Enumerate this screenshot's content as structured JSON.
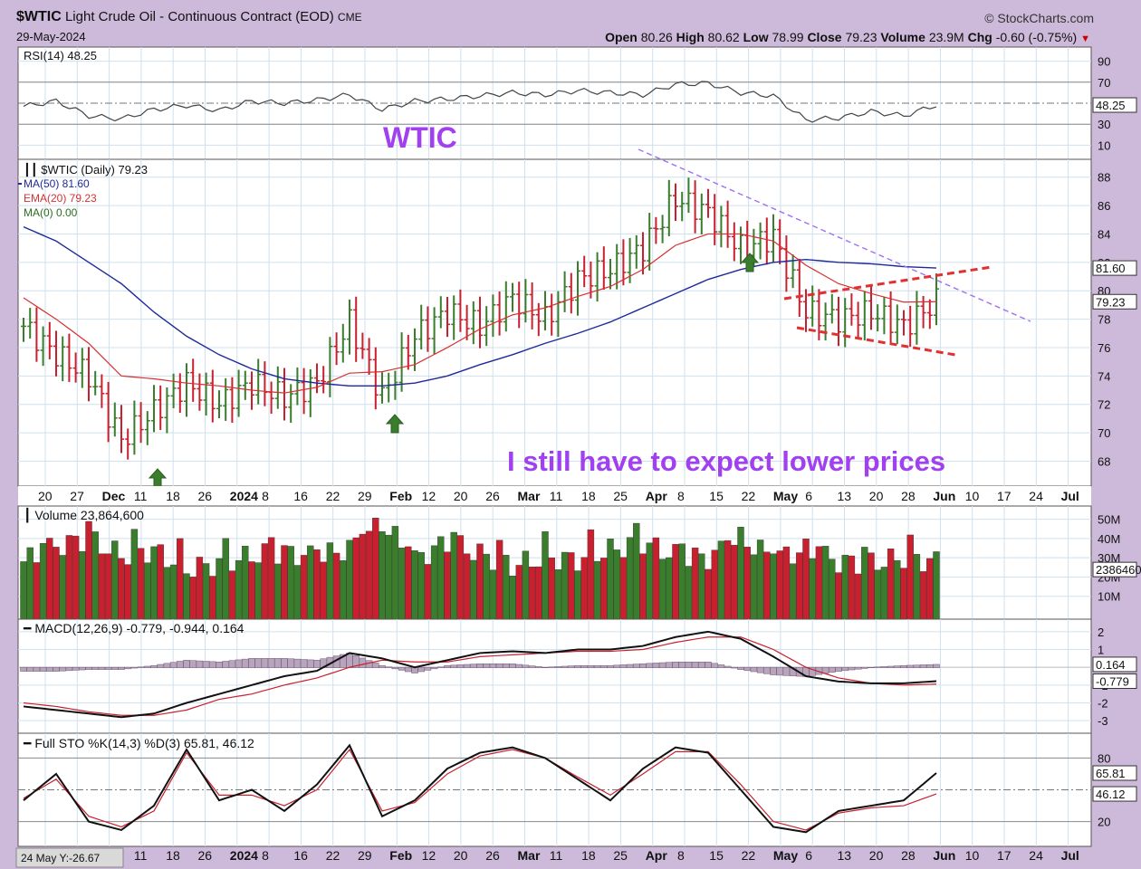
{
  "header": {
    "symbol": "$WTIC",
    "name": "Light Crude Oil - Continuous Contract (EOD)",
    "exchange": "CME",
    "date": "29-May-2024",
    "brand": "© StockCharts.com",
    "open_label": "Open",
    "open": "80.26",
    "high_label": "High",
    "high": "80.62",
    "low_label": "Low",
    "low": "78.99",
    "close_label": "Close",
    "close": "79.23",
    "volume_label": "Volume",
    "volume": "23.9M",
    "chg_label": "Chg",
    "chg": "-0.60 (-0.75%)"
  },
  "annotations": {
    "title_text": "WTIC",
    "comment_text": "I still have to expect lower prices",
    "cursor_readout": "24 May Y:-26.67"
  },
  "colors": {
    "panel_bg": "#ffffff",
    "frame_bg": "#cdb9d9",
    "up_bar": "#3a7d2c",
    "down_bar": "#c8202e",
    "ma50": "#1e2a99",
    "ema20": "#d83030",
    "trendline_purple": "#a070f0",
    "channel_red": "#e03030",
    "annotation_purple": "#a040f0"
  },
  "chart_data": [
    {
      "type": "line",
      "panel": "rsi",
      "legend": "RSI(14) 48.25",
      "ylim": [
        0,
        100
      ],
      "yticks": [
        "90",
        "70",
        "30",
        "10"
      ],
      "last_label": "48.25",
      "levels": [
        70,
        30
      ],
      "x": [
        "2023-11-17",
        "2023-11-24",
        "2023-12-01",
        "2023-12-08",
        "2023-12-15",
        "2023-12-22",
        "2023-12-29",
        "2024-01-05",
        "2024-01-12",
        "2024-01-19",
        "2024-01-26",
        "2024-02-02",
        "2024-02-09",
        "2024-02-16",
        "2024-02-23",
        "2024-03-01",
        "2024-03-08",
        "2024-03-15",
        "2024-03-22",
        "2024-03-29",
        "2024-04-05",
        "2024-04-12",
        "2024-04-19",
        "2024-04-26",
        "2024-05-03",
        "2024-05-10",
        "2024-05-17",
        "2024-05-24",
        "2024-05-29"
      ],
      "series": [
        {
          "name": "RSI(14)",
          "values": [
            47,
            52,
            38,
            35,
            44,
            48,
            43,
            52,
            50,
            53,
            58,
            44,
            52,
            54,
            57,
            60,
            58,
            62,
            60,
            58,
            68,
            69,
            60,
            57,
            34,
            36,
            42,
            38,
            48.25
          ]
        }
      ]
    },
    {
      "type": "ohlc",
      "panel": "price",
      "legend": [
        "$WTIC (Daily) 79.23",
        "MA(50) 81.60",
        "EMA(20) 79.23",
        "MA(0) 0.00"
      ],
      "ylim": [
        66.5,
        89
      ],
      "yticks": [
        "88",
        "86",
        "84",
        "82",
        "80",
        "78",
        "76",
        "74",
        "72",
        "70",
        "68"
      ],
      "last_labels": [
        "81.60",
        "79.23"
      ],
      "x_tick_labels": [
        "20",
        "27",
        "Dec",
        "11",
        "18",
        "26",
        "2024",
        "8",
        "16",
        "22",
        "29",
        "Feb",
        "12",
        "20",
        "26",
        "Mar",
        "11",
        "18",
        "25",
        "Apr",
        "8",
        "15",
        "22",
        "May",
        "6",
        "13",
        "20",
        "28",
        "Jun",
        "10",
        "17",
        "24",
        "Jul"
      ],
      "x": [
        "2023-11-17",
        "2023-11-24",
        "2023-12-01",
        "2023-12-08",
        "2023-12-15",
        "2023-12-22",
        "2023-12-29",
        "2024-01-05",
        "2024-01-12",
        "2024-01-19",
        "2024-01-26",
        "2024-02-02",
        "2024-02-09",
        "2024-02-16",
        "2024-02-23",
        "2024-03-01",
        "2024-03-08",
        "2024-03-15",
        "2024-03-22",
        "2024-03-29",
        "2024-04-05",
        "2024-04-12",
        "2024-04-19",
        "2024-04-26",
        "2024-05-03",
        "2024-05-10",
        "2024-05-17",
        "2024-05-24",
        "2024-05-29"
      ],
      "close": [
        77.5,
        75.5,
        74.0,
        69.5,
        71.5,
        73.5,
        72.0,
        73.5,
        72.5,
        73.5,
        77.8,
        72.5,
        76.8,
        78.5,
        77.5,
        79.5,
        78.0,
        80.8,
        81.5,
        83.0,
        86.5,
        85.5,
        83.0,
        83.8,
        78.5,
        78.0,
        78.5,
        77.5,
        79.23
      ],
      "ma50": [
        84.5,
        83.5,
        82.0,
        80.5,
        78.5,
        76.8,
        75.5,
        74.5,
        73.8,
        73.5,
        73.3,
        73.3,
        73.5,
        74.0,
        74.8,
        75.5,
        76.3,
        77.0,
        77.8,
        78.8,
        79.8,
        80.8,
        81.5,
        82.0,
        82.2,
        82.0,
        81.9,
        81.7,
        81.6
      ],
      "ema20": [
        79.5,
        78.0,
        76.3,
        74.0,
        73.8,
        73.5,
        73.3,
        73.0,
        72.8,
        73.2,
        74.2,
        74.3,
        74.8,
        76.0,
        77.3,
        78.3,
        78.8,
        79.6,
        80.3,
        81.5,
        83.2,
        84.0,
        84.0,
        83.5,
        81.8,
        80.5,
        79.8,
        79.2,
        79.23
      ]
    },
    {
      "type": "bar",
      "panel": "volume",
      "legend": "Volume 23,864,600",
      "yticks": [
        "50M",
        "40M",
        "30M",
        "20M",
        "10M"
      ],
      "last_label": "23864600",
      "ylim": [
        0,
        55
      ],
      "values": [
        28,
        36,
        40,
        31,
        34,
        24,
        27,
        31,
        33,
        30,
        35,
        48,
        29,
        38,
        32,
        26,
        30,
        29,
        34,
        38,
        31,
        30,
        40,
        30,
        34,
        28,
        27,
        30,
        28
      ]
    },
    {
      "type": "line",
      "panel": "macd",
      "legend": "MACD(12,26,9) -0.779, -0.944, 0.164",
      "yticks": [
        "2",
        "1",
        "-1",
        "-2",
        "-3"
      ],
      "last_labels": [
        "0.164",
        "-0.779"
      ],
      "ylim": [
        -3.5,
        2.5
      ],
      "series": [
        {
          "name": "MACD",
          "values": [
            -2.2,
            -2.4,
            -2.6,
            -2.8,
            -2.6,
            -2.0,
            -1.5,
            -1.0,
            -0.5,
            -0.2,
            0.8,
            0.5,
            0.0,
            0.4,
            0.8,
            0.9,
            0.8,
            1.0,
            1.0,
            1.2,
            1.7,
            2.0,
            1.6,
            0.6,
            -0.5,
            -0.8,
            -0.9,
            -0.9,
            -0.779
          ]
        },
        {
          "name": "Signal",
          "values": [
            -2.0,
            -2.2,
            -2.5,
            -2.7,
            -2.7,
            -2.4,
            -1.8,
            -1.5,
            -1.0,
            -0.6,
            0.0,
            0.4,
            0.3,
            0.3,
            0.6,
            0.7,
            0.8,
            0.9,
            0.9,
            1.0,
            1.4,
            1.7,
            1.7,
            1.0,
            0.0,
            -0.6,
            -0.9,
            -1.0,
            -0.944
          ]
        },
        {
          "name": "Histogram",
          "values": [
            -0.2,
            -0.2,
            -0.1,
            -0.1,
            0.1,
            0.4,
            0.3,
            0.5,
            0.5,
            0.4,
            0.8,
            0.1,
            -0.3,
            0.1,
            0.2,
            0.2,
            0.0,
            0.1,
            0.1,
            0.2,
            0.3,
            0.3,
            -0.1,
            -0.4,
            -0.5,
            -0.2,
            0.0,
            0.1,
            0.164
          ]
        }
      ]
    },
    {
      "type": "line",
      "panel": "stochastic",
      "legend": "Full STO %K(14,3) %D(3) 65.81, 46.12",
      "yticks": [
        "80",
        "20"
      ],
      "last_labels": [
        "65.81",
        "46.12"
      ],
      "ylim": [
        0,
        100
      ],
      "levels": [
        80,
        50,
        20
      ],
      "series": [
        {
          "name": "%K",
          "values": [
            40,
            65,
            20,
            12,
            35,
            88,
            40,
            50,
            30,
            55,
            92,
            25,
            40,
            70,
            85,
            90,
            80,
            60,
            40,
            70,
            90,
            85,
            50,
            15,
            10,
            30,
            35,
            40,
            65.81
          ]
        },
        {
          "name": "%D",
          "values": [
            42,
            60,
            25,
            15,
            30,
            85,
            45,
            45,
            35,
            50,
            88,
            30,
            38,
            65,
            82,
            88,
            80,
            62,
            45,
            65,
            86,
            86,
            55,
            20,
            12,
            28,
            33,
            35,
            46.12
          ]
        }
      ]
    }
  ]
}
